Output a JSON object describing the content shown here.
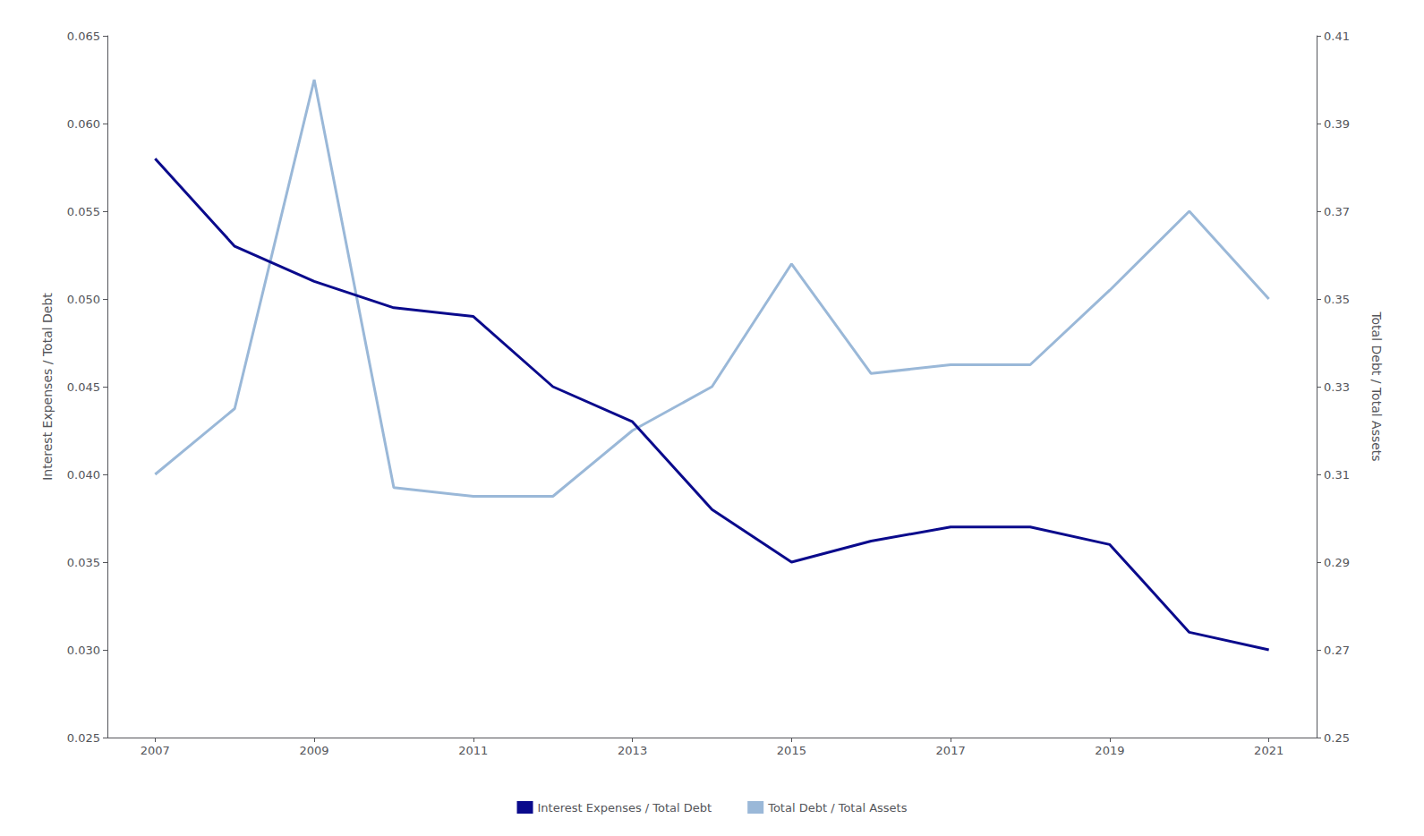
{
  "chart_data": {
    "type": "line",
    "x": [
      2007,
      2008,
      2009,
      2010,
      2011,
      2012,
      2013,
      2014,
      2015,
      2016,
      2017,
      2018,
      2019,
      2020,
      2021
    ],
    "xlim": [
      2006.4,
      2021.6
    ],
    "xticks": [
      2007,
      2009,
      2011,
      2013,
      2015,
      2017,
      2019,
      2021
    ],
    "ylabel": "Interest Expenses / Total Debt",
    "y2label": "Total Debt / Total Assets",
    "ylim": [
      0.025,
      0.065
    ],
    "yticks": [
      0.025,
      {
        "value": 0.03,
        "label": "0.030"
      },
      0.035,
      {
        "value": 0.04,
        "label": "0.040"
      },
      0.045,
      {
        "value": 0.05,
        "label": "0.050"
      },
      0.055,
      {
        "value": 0.06,
        "label": "0.060"
      },
      0.065
    ],
    "y2lim": [
      0.25,
      0.41
    ],
    "y2ticks": [
      0.25,
      0.27,
      0.29,
      0.31,
      0.33,
      0.35,
      0.37,
      0.39,
      0.41
    ],
    "grid": false,
    "legend": "bottom",
    "series": [
      {
        "name": "Interest Expenses / Total Debt",
        "color": "#0a0a8c",
        "axis": "y",
        "values": [
          0.058,
          0.053,
          0.051,
          0.0495,
          0.049,
          0.045,
          0.043,
          0.038,
          0.035,
          0.0362,
          0.037,
          0.037,
          0.036,
          0.031,
          0.03
        ]
      },
      {
        "name": "Total Debt / Total Assets",
        "color": "#9ab8d8",
        "axis": "y2",
        "values": [
          0.31,
          0.325,
          0.4,
          0.307,
          0.305,
          0.305,
          0.32,
          0.33,
          0.358,
          0.333,
          0.335,
          0.335,
          0.352,
          0.37,
          0.35
        ]
      }
    ]
  }
}
